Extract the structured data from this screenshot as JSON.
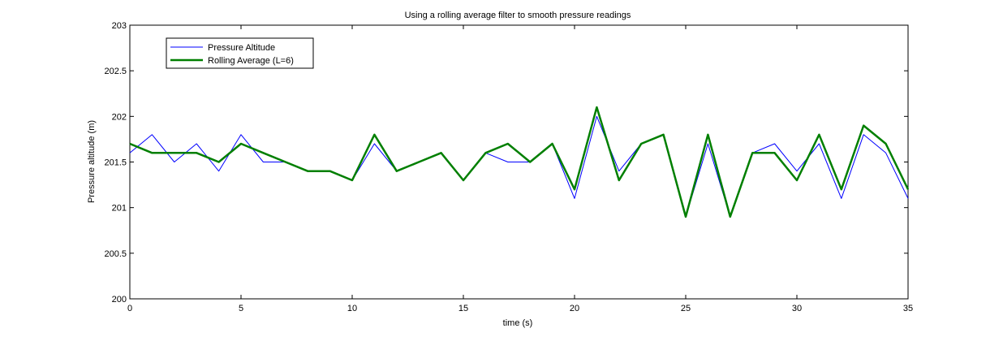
{
  "chart_data": {
    "type": "line",
    "title": "Using a rolling average filter to smooth pressure readings",
    "xlabel": "time (s)",
    "ylabel": "Pressure altitude (m)",
    "xlim": [
      0,
      35
    ],
    "ylim": [
      200,
      203
    ],
    "xticks": [
      0,
      5,
      10,
      15,
      20,
      25,
      30,
      35
    ],
    "xtick_labels": [
      "0",
      "5",
      "10",
      "15",
      "20",
      "25",
      "30",
      "35"
    ],
    "yticks": [
      200,
      200.5,
      201,
      201.5,
      202,
      202.5,
      203
    ],
    "ytick_labels": [
      "200",
      "200.5",
      "201",
      "201.5",
      "202",
      "202.5",
      "203"
    ],
    "grid": false,
    "legend_position": "top-left",
    "x": [
      0,
      1,
      2,
      3,
      4,
      5,
      6,
      7,
      8,
      9,
      10,
      11,
      12,
      13,
      14,
      15,
      16,
      17,
      18,
      19,
      20,
      21,
      22,
      23,
      24,
      25,
      26,
      27,
      28,
      29,
      30,
      31,
      32,
      33,
      34,
      35
    ],
    "series": [
      {
        "name": "Pressure Altitude",
        "color": "#0000ff",
        "line_width": "thin",
        "values": [
          201.6,
          201.8,
          201.5,
          201.7,
          201.4,
          201.8,
          201.5,
          201.5,
          201.4,
          201.4,
          201.3,
          201.7,
          201.4,
          201.5,
          201.6,
          201.3,
          201.6,
          201.5,
          201.5,
          201.7,
          201.1,
          202.0,
          201.4,
          201.7,
          201.8,
          200.9,
          201.7,
          200.9,
          201.6,
          201.7,
          201.4,
          201.7,
          201.1,
          201.8,
          201.6,
          201.1
        ]
      },
      {
        "name": "Rolling Average (L=6)",
        "color": "#007f00",
        "line_width": "thick",
        "values": [
          201.7,
          201.6,
          201.6,
          201.6,
          201.5,
          201.7,
          201.6,
          201.5,
          201.4,
          201.4,
          201.3,
          201.8,
          201.4,
          201.5,
          201.6,
          201.3,
          201.6,
          201.7,
          201.5,
          201.7,
          201.2,
          202.1,
          201.3,
          201.7,
          201.8,
          200.9,
          201.8,
          200.9,
          201.6,
          201.6,
          201.3,
          201.8,
          201.2,
          201.9,
          201.7,
          201.2
        ]
      }
    ]
  }
}
